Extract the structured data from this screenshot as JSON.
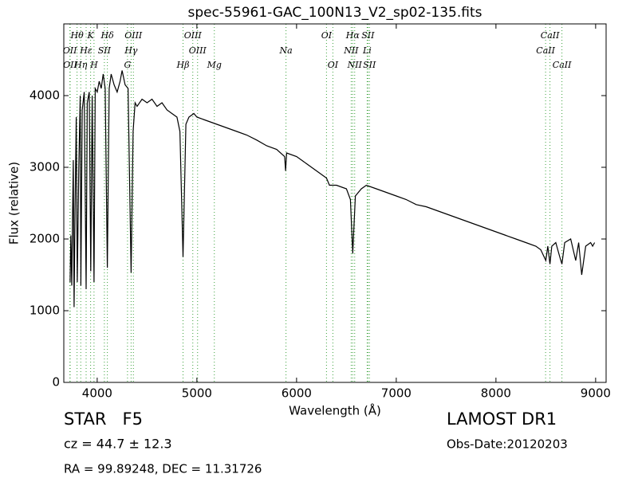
{
  "chart_data": {
    "type": "line",
    "title": "spec-55961-GAC_100N13_V2_sp02-135.fits",
    "x_label": "Wavelength (Å)",
    "y_label": "Flux (relative)",
    "xlim": [
      3665,
      9105
    ],
    "ylim": [
      0,
      5000
    ],
    "xticks": [
      4000,
      5000,
      6000,
      7000,
      8000,
      9000
    ],
    "yticks": [
      0,
      1000,
      2000,
      3000,
      4000
    ],
    "line_color": "#000000",
    "marker_color": "#3aa03a",
    "x": [
      3728,
      3735,
      3745,
      3752,
      3760,
      3768,
      3778,
      3790,
      3800,
      3815,
      3830,
      3836,
      3850,
      3870,
      3889,
      3900,
      3920,
      3935,
      3950,
      3968,
      3980,
      4000,
      4020,
      4040,
      4060,
      4080,
      4102,
      4120,
      4140,
      4170,
      4200,
      4230,
      4250,
      4280,
      4310,
      4340,
      4360,
      4380,
      4400,
      4450,
      4500,
      4550,
      4600,
      4650,
      4700,
      4750,
      4800,
      4830,
      4861,
      4890,
      4920,
      4970,
      5000,
      5100,
      5200,
      5300,
      5400,
      5500,
      5600,
      5700,
      5800,
      5880,
      5890,
      5900,
      6000,
      6100,
      6200,
      6300,
      6330,
      6400,
      6500,
      6540,
      6563,
      6590,
      6650,
      6700,
      6800,
      6900,
      7000,
      7100,
      7200,
      7300,
      7400,
      7500,
      7600,
      7700,
      7800,
      7900,
      8000,
      8100,
      8200,
      8300,
      8400,
      8450,
      8500,
      8520,
      8542,
      8560,
      8600,
      8640,
      8662,
      8690,
      8750,
      8800,
      8830,
      8860,
      8900,
      8950,
      8970,
      8990
    ],
    "values": [
      1400,
      2050,
      1350,
      2250,
      3100,
      1050,
      2400,
      3700,
      1400,
      3000,
      4000,
      1350,
      3800,
      4050,
      1300,
      3900,
      4050,
      1550,
      4000,
      1400,
      4100,
      4050,
      4200,
      4100,
      4300,
      4100,
      1600,
      4100,
      4300,
      4150,
      4050,
      4200,
      4350,
      4150,
      4100,
      1530,
      3500,
      3900,
      3850,
      3950,
      3900,
      3950,
      3850,
      3900,
      3800,
      3750,
      3700,
      3500,
      1750,
      3600,
      3700,
      3750,
      3700,
      3650,
      3600,
      3550,
      3500,
      3450,
      3380,
      3300,
      3250,
      3150,
      2950,
      3200,
      3150,
      3050,
      2950,
      2850,
      2750,
      2750,
      2700,
      2550,
      1800,
      2600,
      2700,
      2750,
      2700,
      2650,
      2600,
      2550,
      2480,
      2450,
      2400,
      2350,
      2300,
      2250,
      2200,
      2150,
      2100,
      2050,
      2000,
      1950,
      1900,
      1850,
      1700,
      1900,
      1650,
      1900,
      1950,
      1750,
      1650,
      1950,
      2000,
      1700,
      1950,
      1500,
      1900,
      1950,
      1900,
      1950
    ],
    "spectral_lines": [
      {
        "label": "Hθ",
        "wavelength": 3798
      },
      {
        "label": "OII",
        "wavelength": 3726
      },
      {
        "label": "OII",
        "wavelength": 3729
      },
      {
        "label": "Hε",
        "wavelength": 3889
      },
      {
        "label": "Hη",
        "wavelength": 3835
      },
      {
        "label": "K",
        "wavelength": 3934
      },
      {
        "label": "SII",
        "wavelength": 4072
      },
      {
        "label": "H",
        "wavelength": 3968
      },
      {
        "label": "Hδ",
        "wavelength": 4102
      },
      {
        "label": "OIII",
        "wavelength": 4363
      },
      {
        "label": "Hγ",
        "wavelength": 4340
      },
      {
        "label": "G",
        "wavelength": 4304
      },
      {
        "label": "OIII",
        "wavelength": 4959
      },
      {
        "label": "OIII",
        "wavelength": 5007
      },
      {
        "label": "Hβ",
        "wavelength": 4861
      },
      {
        "label": "Mg",
        "wavelength": 5175
      },
      {
        "label": "Na",
        "wavelength": 5894
      },
      {
        "label": "OI",
        "wavelength": 6300
      },
      {
        "label": "OI",
        "wavelength": 6364
      },
      {
        "label": "Hα",
        "wavelength": 6563
      },
      {
        "label": "SII",
        "wavelength": 6716
      },
      {
        "label": "NII",
        "wavelength": 6548
      },
      {
        "label": "Li",
        "wavelength": 6708
      },
      {
        "label": "NII",
        "wavelength": 6583
      },
      {
        "label": "SII",
        "wavelength": 6731
      },
      {
        "label": "CaII",
        "wavelength": 8542
      },
      {
        "label": "CaII",
        "wavelength": 8498
      },
      {
        "label": "CaII",
        "wavelength": 8662
      }
    ],
    "object_class": "STAR   F5",
    "redshift": "cz = 44.7 ± 12.3",
    "coordinates": "RA = 99.89248, DEC = 11.31726",
    "survey": "LAMOST DR1",
    "obs_date": "Obs-Date:20120203"
  }
}
